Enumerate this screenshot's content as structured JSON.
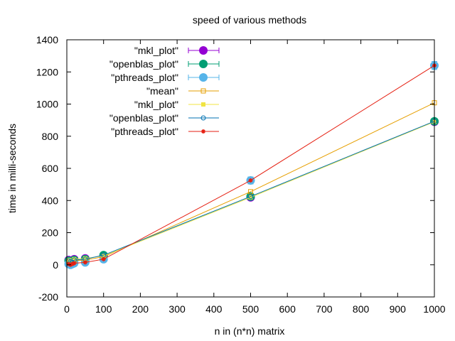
{
  "chart_data": {
    "type": "line",
    "title": "speed of various methods",
    "xlabel": "n in (n*n) matrix",
    "ylabel": "time in milli-seconds",
    "xlim": [
      0,
      1000
    ],
    "ylim": [
      -200,
      1400
    ],
    "xticks": [
      0,
      100,
      200,
      300,
      400,
      500,
      600,
      700,
      800,
      900,
      1000
    ],
    "yticks": [
      -200,
      0,
      200,
      400,
      600,
      800,
      1000,
      1200,
      1400
    ],
    "grid": false,
    "legend_position": "top-left",
    "x": [
      5,
      10,
      15,
      20,
      50,
      100,
      500,
      1000
    ],
    "series": [
      {
        "name": "\"mkl_plot\"",
        "kind": "errorbars",
        "color": "#9400d3",
        "marker": "circle",
        "values": [
          30,
          25,
          20,
          35,
          40,
          55,
          420,
          890
        ],
        "err": [
          6,
          6,
          6,
          6,
          8,
          10,
          18,
          15
        ]
      },
      {
        "name": "\"openblas_plot\"",
        "kind": "errorbars",
        "color": "#009e73",
        "marker": "circle",
        "values": [
          25,
          20,
          15,
          30,
          35,
          60,
          425,
          893
        ],
        "err": [
          6,
          6,
          6,
          6,
          8,
          10,
          18,
          15
        ]
      },
      {
        "name": "\"pthreads_plot\"",
        "kind": "errorbars",
        "color": "#56b4e9",
        "marker": "circle",
        "values": [
          5,
          0,
          5,
          10,
          15,
          35,
          525,
          1240
        ],
        "err": [
          10,
          10,
          10,
          10,
          12,
          12,
          22,
          25
        ]
      },
      {
        "name": "\"mean\"",
        "kind": "line",
        "color": "#e69f00",
        "marker": "square-open",
        "values": [
          20,
          15,
          13,
          25,
          30,
          50,
          455,
          1008
        ]
      },
      {
        "name": "\"mkl_plot\"",
        "kind": "line",
        "color": "#f0e442",
        "marker": "square",
        "values": [
          30,
          25,
          20,
          35,
          40,
          55,
          420,
          890
        ]
      },
      {
        "name": "\"openblas_plot\"",
        "kind": "line",
        "color": "#0072b2",
        "marker": "circle-open",
        "values": [
          25,
          20,
          15,
          30,
          35,
          60,
          425,
          893
        ]
      },
      {
        "name": "\"pthreads_plot\"",
        "kind": "line",
        "color": "#e51e10",
        "marker": "star",
        "values": [
          5,
          0,
          5,
          10,
          15,
          35,
          525,
          1240
        ]
      }
    ]
  }
}
